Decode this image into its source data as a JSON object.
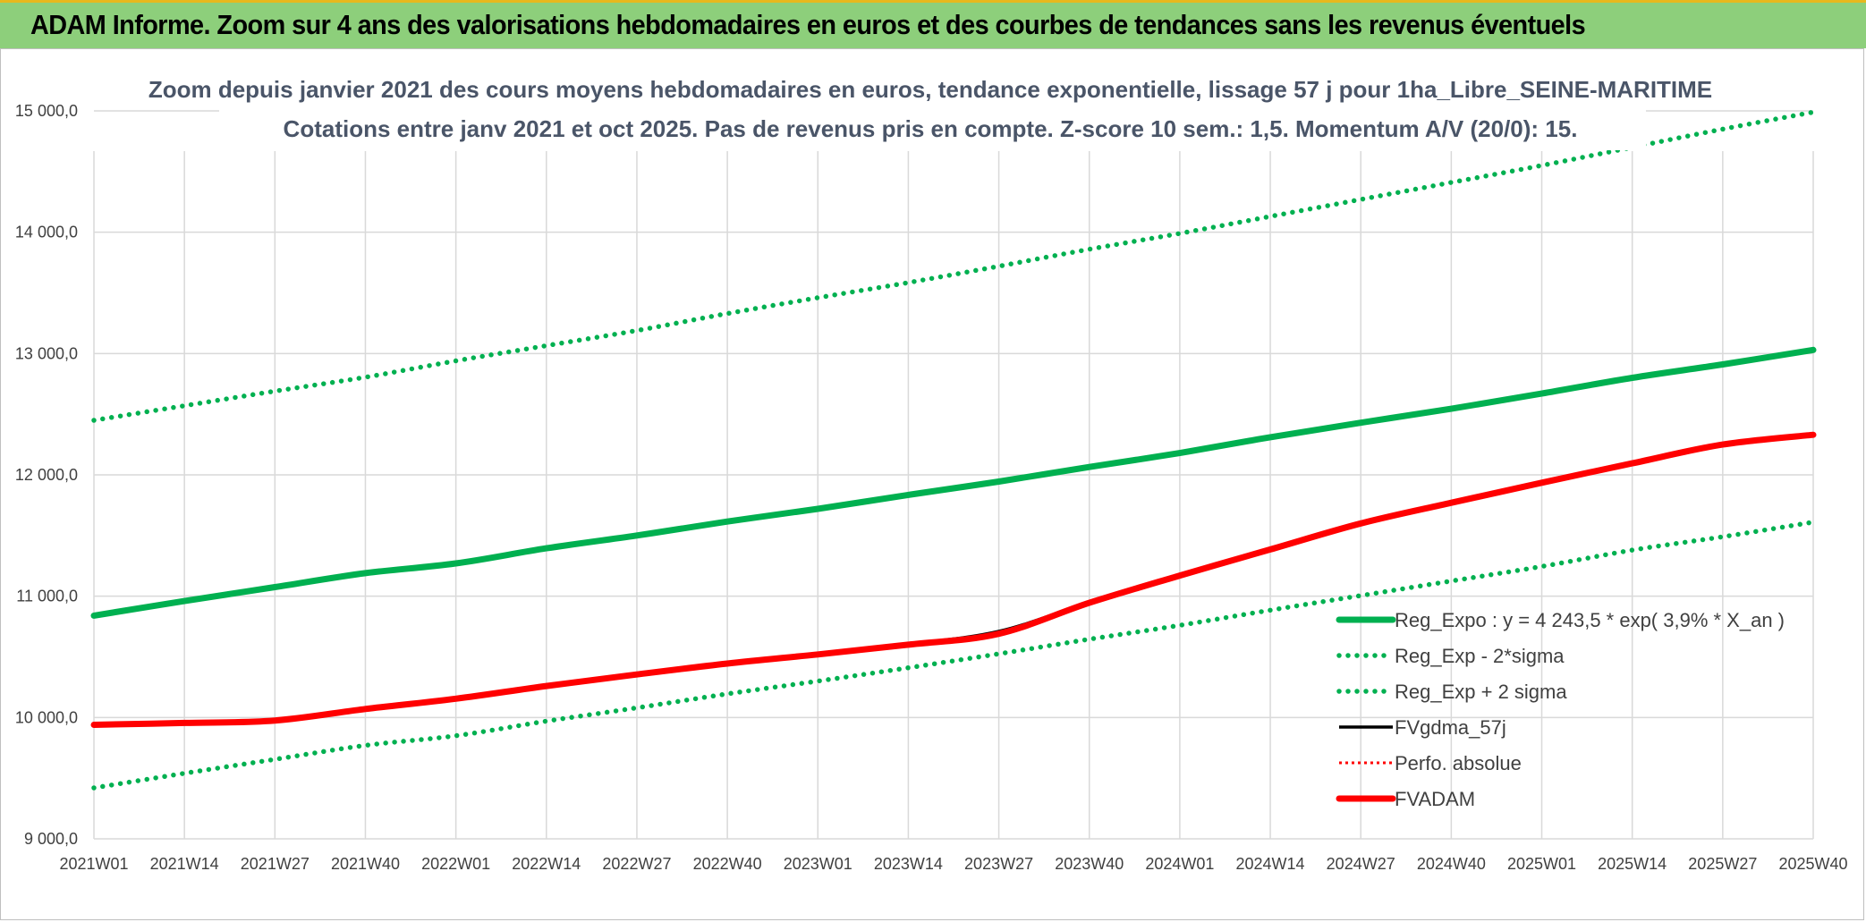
{
  "banner": {
    "title": "ADAM Informe. Zoom sur 4 ans des valorisations hebdomadaires en euros et des courbes de tendances sans les revenus éventuels"
  },
  "colors": {
    "banner_bg": "#8dcf7b",
    "banner_border": "#e7b81e",
    "green": "#00b050",
    "red": "#ff0000",
    "black": "#000000",
    "grid": "#d9d9d9"
  },
  "chart_data": {
    "type": "line",
    "title": "Zoom depuis janvier 2021 des cours moyens hebdomadaires en euros, tendance exponentielle, lissage 57 j pour 1ha_Libre_SEINE-MARITIME",
    "subtitle": "Cotations entre janv 2021 et oct 2025. Pas de revenus pris en compte. Z-score 10 sem.: 1,5. Momentum A/V (20/0): 15.",
    "xlabel": "",
    "ylabel": "",
    "ylim": [
      9000,
      15000
    ],
    "grid": true,
    "legend_position": "right",
    "yticks": [
      "9 000,0",
      "10 000,0",
      "11 000,0",
      "12 000,0",
      "13 000,0",
      "14 000,0",
      "15 000,0"
    ],
    "ytick_values": [
      9000,
      10000,
      11000,
      12000,
      13000,
      14000,
      15000
    ],
    "xticks": [
      "2021W01",
      "2021W14",
      "2021W27",
      "2021W40",
      "2022W01",
      "2022W14",
      "2022W27",
      "2022W40",
      "2023W01",
      "2023W14",
      "2023W27",
      "2023W40",
      "2024W01",
      "2024W14",
      "2024W27",
      "2024W40",
      "2025W01",
      "2025W14",
      "2025W27",
      "2025W40"
    ],
    "series": [
      {
        "name": "Reg_Expo : y = 4 243,5 * exp( 3,9% *  X_an )",
        "style": "solid-thick",
        "color": "#00b050",
        "values": [
          10840,
          10960,
          11075,
          11190,
          11270,
          11395,
          11500,
          11615,
          11720,
          11835,
          11945,
          12065,
          12180,
          12310,
          12430,
          12545,
          12670,
          12800,
          12910,
          13030
        ]
      },
      {
        "name": "Reg_Exp - 2*sigma",
        "style": "dotted",
        "color": "#00b050",
        "values": [
          9420,
          9540,
          9655,
          9770,
          9850,
          9970,
          10080,
          10195,
          10300,
          10410,
          10525,
          10645,
          10760,
          10885,
          11005,
          11125,
          11245,
          11380,
          11490,
          11610
        ]
      },
      {
        "name": "Reg_Exp + 2 sigma",
        "style": "dotted",
        "color": "#00b050",
        "values": [
          12450,
          12570,
          12690,
          12805,
          12940,
          13065,
          13190,
          13330,
          13460,
          13585,
          13720,
          13860,
          13990,
          14130,
          14270,
          14410,
          14550,
          14700,
          14850,
          14990
        ]
      },
      {
        "name": "FVgdma_57j",
        "style": "solid-thin",
        "color": "#000000",
        "values": [
          9940,
          9955,
          9985,
          10075,
          10160,
          10265,
          10360,
          10450,
          10525,
          10605,
          10710,
          10950,
          11175,
          11390,
          11605,
          11775,
          11940,
          12095,
          12255,
          12335
        ]
      },
      {
        "name": "Perfo. absolue",
        "style": "dotted-thin",
        "color": "#ff0000",
        "values": [
          9940,
          9955,
          9975,
          10070,
          10155,
          10260,
          10355,
          10445,
          10520,
          10600,
          10690,
          10945,
          11170,
          11385,
          11600,
          11770,
          11935,
          12095,
          12250,
          12330
        ]
      },
      {
        "name": "FVADAM",
        "style": "solid-thick",
        "color": "#ff0000",
        "values": [
          9940,
          9955,
          9975,
          10070,
          10155,
          10260,
          10355,
          10445,
          10520,
          10600,
          10690,
          10945,
          11170,
          11385,
          11600,
          11770,
          11935,
          12095,
          12250,
          12330
        ]
      }
    ]
  }
}
